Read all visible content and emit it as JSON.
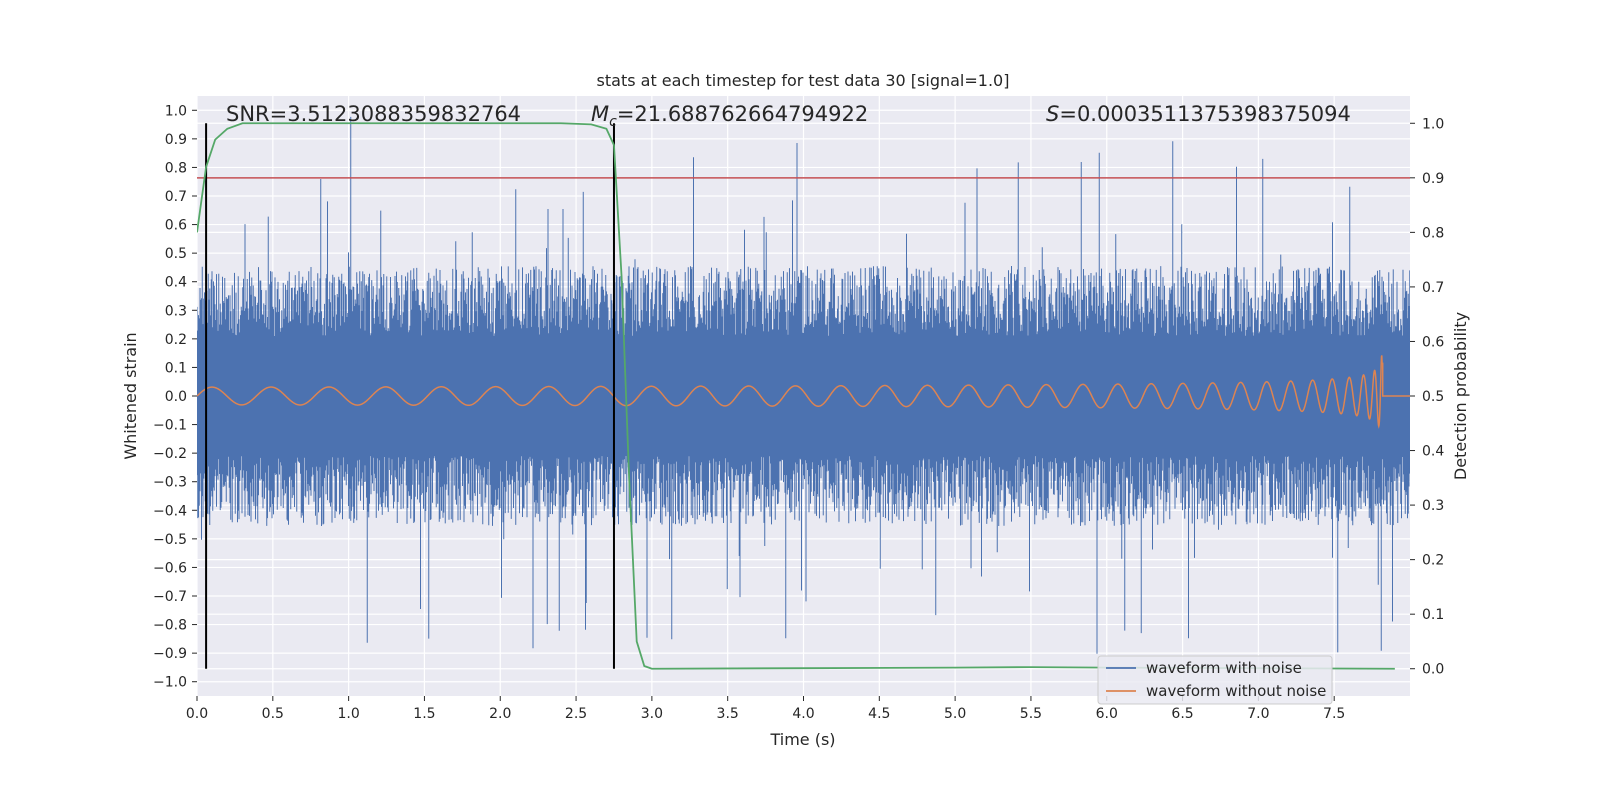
{
  "chart_data": {
    "type": "line",
    "title": "stats at each timestep for test data 30 [signal=1.0]",
    "xlabel": "Time (s)",
    "ylabel_left": "Whitened strain",
    "ylabel_right": "Detection probability",
    "xlim": [
      0.0,
      8.0
    ],
    "ylim_left": [
      -1.05,
      1.05
    ],
    "ylim_right": [
      -0.05,
      1.05
    ],
    "x_ticks": [
      "0.0",
      "0.5",
      "1.0",
      "1.5",
      "2.0",
      "2.5",
      "3.0",
      "3.5",
      "4.0",
      "4.5",
      "5.0",
      "5.5",
      "6.0",
      "6.5",
      "7.0",
      "7.5"
    ],
    "y_left_ticks": [
      "1.0",
      "0.9",
      "0.8",
      "0.7",
      "0.6",
      "0.5",
      "0.4",
      "0.3",
      "0.2",
      "0.1",
      "0.0",
      "−0.1",
      "−0.2",
      "−0.3",
      "−0.4",
      "−0.5",
      "−0.6",
      "−0.7",
      "−0.8",
      "−0.9",
      "−1.0"
    ],
    "y_right_ticks": [
      "1.0",
      "0.9",
      "0.8",
      "0.7",
      "0.6",
      "0.5",
      "0.4",
      "0.3",
      "0.2",
      "0.1",
      "0.0"
    ],
    "grid": true,
    "legend_position": "bottom-right",
    "annotations": {
      "snr": "SNR=3.5123088359832764",
      "mc_symbol": "M",
      "mc_sub": "c",
      "mc_value": "=21.688762664794922",
      "s_symbol": "S",
      "s_value": "=0.0003511375398375094"
    },
    "threshold_line": {
      "y_right": 0.9,
      "color": "#c44e52"
    },
    "vertical_markers": [
      0.06,
      2.75
    ],
    "series": [
      {
        "name": "waveform with noise",
        "color": "#4c72b0",
        "envelope_typical": 0.35,
        "envelope_peak": 1.0
      },
      {
        "name": "waveform without noise",
        "color": "#dd8452",
        "chirp_end_time": 7.82,
        "peak_amplitude": 0.22
      },
      {
        "color": "#55a868",
        "axis": "right",
        "points": [
          [
            0.0,
            0.8
          ],
          [
            0.06,
            0.92
          ],
          [
            0.12,
            0.97
          ],
          [
            0.2,
            0.99
          ],
          [
            0.3,
            1.0
          ],
          [
            0.5,
            1.0
          ],
          [
            1.0,
            1.0
          ],
          [
            1.5,
            1.0
          ],
          [
            2.0,
            1.0
          ],
          [
            2.4,
            1.0
          ],
          [
            2.6,
            0.998
          ],
          [
            2.7,
            0.99
          ],
          [
            2.75,
            0.96
          ],
          [
            2.8,
            0.72
          ],
          [
            2.85,
            0.35
          ],
          [
            2.9,
            0.05
          ],
          [
            2.95,
            0.005
          ],
          [
            3.0,
            0.0
          ],
          [
            4.0,
            0.001
          ],
          [
            5.0,
            0.002
          ],
          [
            5.5,
            0.003
          ],
          [
            6.0,
            0.002
          ],
          [
            7.0,
            0.001
          ],
          [
            7.9,
            0.0
          ]
        ]
      }
    ]
  }
}
